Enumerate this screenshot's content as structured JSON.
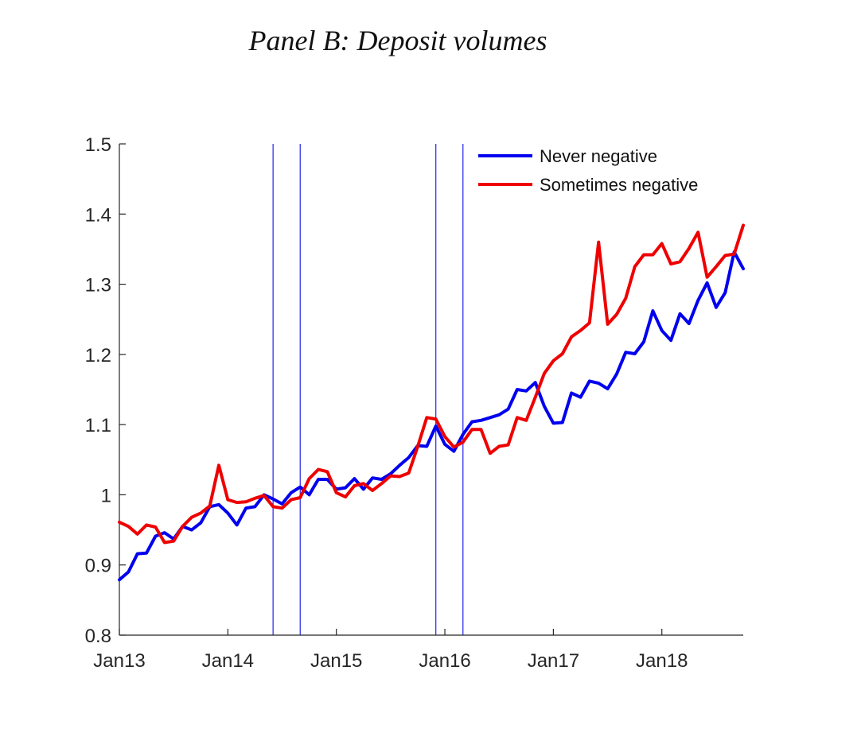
{
  "chart_data": {
    "type": "line",
    "title": "Panel B: Deposit volumes",
    "xlabel": "",
    "ylabel": "",
    "ylim": [
      0.8,
      1.5
    ],
    "yticks": [
      0.8,
      0.9,
      1,
      1.1,
      1.2,
      1.3,
      1.4,
      1.5
    ],
    "ytick_labels": [
      "0.8",
      "0.9",
      "1",
      "1.1",
      "1.2",
      "1.3",
      "1.4",
      "1.5"
    ],
    "xlim": [
      0,
      69
    ],
    "xticks": [
      0,
      12,
      24,
      36,
      48,
      60
    ],
    "xtick_labels": [
      "Jan13",
      "Jan14",
      "Jan15",
      "Jan16",
      "Jan17",
      "Jan18"
    ],
    "x_unit": "months since Jan 2013",
    "vertical_lines": [
      17,
      20,
      35,
      38
    ],
    "vertical_line_color": "#3333ee",
    "legend_position": "top-right",
    "series": [
      {
        "name": "Never negative",
        "color": "#0000ee",
        "values": [
          0.879,
          0.89,
          0.916,
          0.917,
          0.941,
          0.946,
          0.937,
          0.955,
          0.95,
          0.96,
          0.983,
          0.986,
          0.974,
          0.957,
          0.981,
          0.983,
          1.0,
          0.994,
          0.987,
          1.003,
          1.011,
          1.0,
          1.022,
          1.022,
          1.008,
          1.01,
          1.023,
          1.008,
          1.024,
          1.022,
          1.03,
          1.042,
          1.053,
          1.07,
          1.069,
          1.098,
          1.072,
          1.062,
          1.086,
          1.104,
          1.106,
          1.11,
          1.114,
          1.122,
          1.15,
          1.148,
          1.16,
          1.126,
          1.102,
          1.103,
          1.145,
          1.139,
          1.162,
          1.159,
          1.151,
          1.172,
          1.203,
          1.201,
          1.218,
          1.262,
          1.234,
          1.22,
          1.258,
          1.244,
          1.277,
          1.302,
          1.267,
          1.288,
          1.346,
          1.322
        ]
      },
      {
        "name": "Sometimes negative",
        "color": "#ee0000",
        "values": [
          0.961,
          0.955,
          0.944,
          0.957,
          0.954,
          0.932,
          0.934,
          0.955,
          0.968,
          0.974,
          0.984,
          1.042,
          0.993,
          0.989,
          0.99,
          0.995,
          0.999,
          0.983,
          0.981,
          0.993,
          0.996,
          1.023,
          1.036,
          1.033,
          1.003,
          0.997,
          1.013,
          1.016,
          1.006,
          1.016,
          1.027,
          1.026,
          1.031,
          1.069,
          1.11,
          1.108,
          1.083,
          1.068,
          1.075,
          1.093,
          1.093,
          1.059,
          1.069,
          1.071,
          1.11,
          1.106,
          1.139,
          1.173,
          1.191,
          1.201,
          1.225,
          1.234,
          1.245,
          1.36,
          1.243,
          1.257,
          1.28,
          1.325,
          1.342,
          1.342,
          1.358,
          1.329,
          1.332,
          1.351,
          1.374,
          1.31,
          1.325,
          1.341,
          1.343,
          1.384
        ]
      }
    ]
  }
}
